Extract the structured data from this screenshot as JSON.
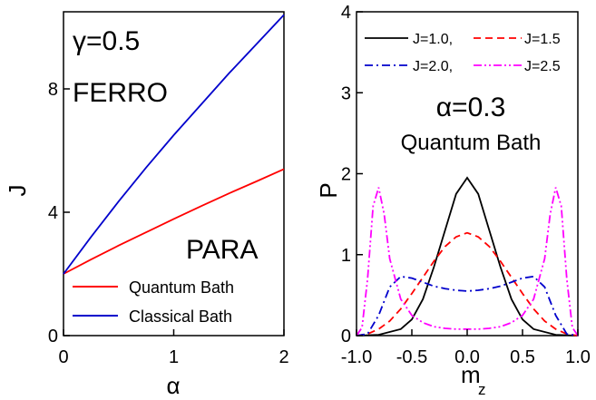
{
  "chart_data": [
    {
      "type": "line",
      "xlabel": "α",
      "ylabel": "J",
      "xlim": [
        0,
        2
      ],
      "ylim": [
        0,
        10.5
      ],
      "x_ticks": [
        "0",
        "1",
        "2"
      ],
      "y_ticks": [
        "0",
        "4",
        "8"
      ],
      "annotations": [
        "γ=0.5",
        "FERRO",
        "PARA"
      ],
      "legend_position": "bottom-right",
      "series": [
        {
          "name": "Quantum Bath",
          "color": "#ff0000",
          "x": [
            0,
            0.25,
            0.5,
            0.75,
            1.0,
            1.25,
            1.5,
            1.75,
            2.0
          ],
          "y": [
            2.0,
            2.47,
            2.92,
            3.35,
            3.78,
            4.2,
            4.61,
            5.0,
            5.4
          ]
        },
        {
          "name": "Classical Bath",
          "color": "#0000cc",
          "x": [
            0,
            0.25,
            0.5,
            0.75,
            1.0,
            1.25,
            1.5,
            1.75,
            2.0
          ],
          "y": [
            2.0,
            3.2,
            4.35,
            5.45,
            6.5,
            7.5,
            8.5,
            9.45,
            10.4
          ]
        }
      ]
    },
    {
      "type": "line",
      "xlabel": "m",
      "xlabel_sub": "z",
      "ylabel": "P",
      "xlim": [
        -1.0,
        1.0
      ],
      "ylim": [
        0,
        4
      ],
      "x_ticks": [
        "-1.0",
        "-0.5",
        "0.0",
        "0.5",
        "1.0"
      ],
      "y_ticks": [
        "0",
        "1",
        "2",
        "3",
        "4"
      ],
      "annotations": [
        "α=0.3",
        "Quantum Bath"
      ],
      "legend_position": "top",
      "series": [
        {
          "name": "J=1.0,",
          "color": "#000000",
          "dash": "solid",
          "x": [
            -1.0,
            -0.8,
            -0.6,
            -0.5,
            -0.4,
            -0.3,
            -0.2,
            -0.1,
            0.0,
            0.1,
            0.2,
            0.3,
            0.4,
            0.5,
            0.6,
            0.8,
            1.0
          ],
          "y": [
            0,
            0.01,
            0.08,
            0.2,
            0.45,
            0.85,
            1.3,
            1.75,
            1.95,
            1.75,
            1.3,
            0.85,
            0.45,
            0.2,
            0.08,
            0.01,
            0
          ]
        },
        {
          "name": "J=1.5",
          "color": "#ff0000",
          "dash": "dashed",
          "x": [
            -1.0,
            -0.9,
            -0.8,
            -0.7,
            -0.6,
            -0.5,
            -0.4,
            -0.3,
            -0.2,
            -0.1,
            0.0,
            0.1,
            0.2,
            0.3,
            0.4,
            0.5,
            0.6,
            0.7,
            0.8,
            0.9,
            1.0
          ],
          "y": [
            0,
            0.02,
            0.08,
            0.18,
            0.33,
            0.52,
            0.72,
            0.92,
            1.1,
            1.22,
            1.27,
            1.22,
            1.1,
            0.92,
            0.72,
            0.52,
            0.33,
            0.18,
            0.08,
            0.02,
            0
          ]
        },
        {
          "name": "J=2.0,",
          "color": "#0000cc",
          "dash": "dashdot",
          "x": [
            -1.0,
            -0.9,
            -0.8,
            -0.7,
            -0.6,
            -0.5,
            -0.4,
            -0.3,
            -0.2,
            -0.1,
            0.0,
            0.1,
            0.2,
            0.3,
            0.4,
            0.5,
            0.6,
            0.7,
            0.8,
            0.9,
            1.0
          ],
          "y": [
            0,
            0.02,
            0.25,
            0.6,
            0.73,
            0.71,
            0.66,
            0.61,
            0.58,
            0.56,
            0.55,
            0.56,
            0.58,
            0.61,
            0.66,
            0.71,
            0.73,
            0.6,
            0.25,
            0.02,
            0
          ]
        },
        {
          "name": "J=2.5",
          "color": "#ff00ff",
          "dash": "dashdotdot",
          "x": [
            -1.0,
            -0.95,
            -0.9,
            -0.85,
            -0.8,
            -0.75,
            -0.7,
            -0.6,
            -0.5,
            -0.4,
            -0.3,
            -0.2,
            -0.1,
            0.0,
            0.1,
            0.2,
            0.3,
            0.4,
            0.5,
            0.6,
            0.7,
            0.75,
            0.8,
            0.85,
            0.9,
            0.95,
            1.0
          ],
          "y": [
            0,
            0.1,
            0.7,
            1.6,
            1.83,
            1.5,
            0.95,
            0.45,
            0.25,
            0.16,
            0.11,
            0.09,
            0.08,
            0.08,
            0.08,
            0.09,
            0.11,
            0.16,
            0.25,
            0.45,
            0.95,
            1.5,
            1.83,
            1.6,
            0.7,
            0.1,
            0
          ]
        }
      ]
    }
  ]
}
